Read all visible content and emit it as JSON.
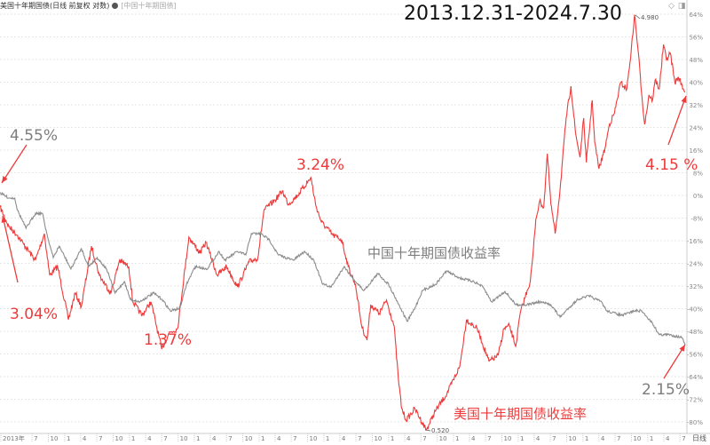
{
  "header": {
    "main_series": "美国十年期国债(日线 前复权 对数)",
    "compare_series": "[中国十年期国债]"
  },
  "top_right_icons": [
    "diamond-icon",
    "panel-icon"
  ],
  "chart_data": {
    "type": "line",
    "title": "2013.12.31-2024.7.30",
    "y_axis": {
      "position": "right",
      "unit": "%",
      "range": [
        -80,
        64
      ],
      "ticks": [
        "64%",
        "56%",
        "48%",
        "40%",
        "32%",
        "24%",
        "16%",
        "8%",
        "0%",
        "-8%",
        "-16%",
        "-24%",
        "-32%",
        "-40%",
        "-48%",
        "-56%",
        "-64%",
        "-72%",
        "-80%"
      ],
      "tick_values": [
        64,
        56,
        48,
        40,
        32,
        24,
        16,
        8,
        0,
        -8,
        -16,
        -24,
        -32,
        -40,
        -48,
        -56,
        -64,
        -72,
        -80
      ]
    },
    "x_axis": {
      "range": [
        "2014-01-01",
        "2024-07-30"
      ],
      "period_label": "日线",
      "ticks": [
        "2013年",
        "7",
        "10",
        "1",
        "4",
        "7",
        "10",
        "1",
        "4",
        "7",
        "10",
        "1",
        "4",
        "7",
        "10",
        "1",
        "4",
        "7",
        "10",
        "1",
        "4",
        "7",
        "10",
        "1",
        "4",
        "7",
        "10",
        "1",
        "4",
        "7",
        "10",
        "1",
        "4",
        "7",
        "10",
        "1",
        "4",
        "7",
        "10",
        "1",
        "4",
        "7"
      ]
    },
    "grid": "horizontal dashed",
    "series": [
      {
        "name": "美国十年期国债收益率",
        "color": "#ee3a3a",
        "points": [
          [
            "2014-01-01",
            -4.1
          ],
          [
            "2014-02-20",
            -11.0
          ],
          [
            "2014-04-10",
            -14.1
          ],
          [
            "2014-05-15",
            -17.3
          ],
          [
            "2014-07-20",
            -22.9
          ],
          [
            "2014-09-08",
            -13.5
          ],
          [
            "2014-10-08",
            -28.2
          ],
          [
            "2014-11-22",
            -25.1
          ],
          [
            "2015-01-22",
            -43.9
          ],
          [
            "2015-03-01",
            -34.5
          ],
          [
            "2015-04-05",
            -39.2
          ],
          [
            "2015-06-01",
            -17.9
          ],
          [
            "2015-07-15",
            -28.2
          ],
          [
            "2015-09-18",
            -34.5
          ],
          [
            "2015-11-06",
            -22.9
          ],
          [
            "2015-12-28",
            -25.1
          ],
          [
            "2016-01-20",
            -37.6
          ],
          [
            "2016-03-12",
            -42.4
          ],
          [
            "2016-05-01",
            -37.6
          ],
          [
            "2016-07-01",
            -54.3
          ],
          [
            "2016-08-10",
            -48.6
          ],
          [
            "2016-09-28",
            -47.1
          ],
          [
            "2016-12-01",
            -14.7
          ],
          [
            "2017-02-01",
            -20.4
          ],
          [
            "2017-03-08",
            -16.6
          ],
          [
            "2017-05-10",
            -28.2
          ],
          [
            "2017-07-01",
            -25.1
          ],
          [
            "2017-09-01",
            -32.3
          ],
          [
            "2017-11-05",
            -23.5
          ],
          [
            "2017-12-25",
            -22.0
          ],
          [
            "2018-01-28",
            -5.3
          ],
          [
            "2018-04-01",
            -1.6
          ],
          [
            "2018-05-12",
            1.6
          ],
          [
            "2018-06-15",
            -3.1
          ],
          [
            "2018-08-05",
            0
          ],
          [
            "2018-10-20",
            6.3
          ],
          [
            "2018-11-15",
            -3.1
          ],
          [
            "2018-12-18",
            -9.4
          ],
          [
            "2019-02-22",
            -14.1
          ],
          [
            "2019-04-12",
            -15.7
          ],
          [
            "2019-05-18",
            -25.1
          ],
          [
            "2019-06-28",
            -31.4
          ],
          [
            "2019-08-02",
            -46.1
          ],
          [
            "2019-09-01",
            -51.1
          ],
          [
            "2019-09-22",
            -38.6
          ],
          [
            "2019-11-10",
            -41.7
          ],
          [
            "2019-12-20",
            -37.0
          ],
          [
            "2020-02-01",
            -46.1
          ],
          [
            "2020-02-25",
            -64.9
          ],
          [
            "2020-03-15",
            -75.3
          ],
          [
            "2020-04-10",
            -79.4
          ],
          [
            "2020-05-28",
            -75.3
          ],
          [
            "2020-08-01",
            -82.9
          ],
          [
            "2020-09-20",
            -76.2
          ],
          [
            "2020-11-25",
            -70.0
          ],
          [
            "2021-02-05",
            -60.5
          ],
          [
            "2021-03-15",
            -43.9
          ],
          [
            "2021-05-15",
            -47.1
          ],
          [
            "2021-07-20",
            -58.7
          ],
          [
            "2021-09-10",
            -56.5
          ],
          [
            "2021-10-12",
            -47.1
          ],
          [
            "2021-11-12",
            -46.1
          ],
          [
            "2021-12-18",
            -53.3
          ],
          [
            "2022-01-12",
            -41.7
          ],
          [
            "2022-02-20",
            -33.6
          ],
          [
            "2022-03-10",
            -30.4
          ],
          [
            "2022-03-25",
            -21.0
          ],
          [
            "2022-04-10",
            -8.5
          ],
          [
            "2022-05-01",
            -2.2
          ],
          [
            "2022-05-25",
            -4.1
          ],
          [
            "2022-06-14",
            14.7
          ],
          [
            "2022-07-04",
            -3.1
          ],
          [
            "2022-07-28",
            -13.5
          ],
          [
            "2022-08-25",
            2.2
          ],
          [
            "2022-09-28",
            27.3
          ],
          [
            "2022-10-25",
            38.6
          ],
          [
            "2022-11-20",
            22.0
          ],
          [
            "2022-12-15",
            13.5
          ],
          [
            "2023-01-05",
            27.3
          ],
          [
            "2023-01-20",
            11.6
          ],
          [
            "2023-02-22",
            33.6
          ],
          [
            "2023-03-08",
            18.8
          ],
          [
            "2023-04-01",
            9.4
          ],
          [
            "2023-05-05",
            16.6
          ],
          [
            "2023-05-30",
            25.1
          ],
          [
            "2023-06-28",
            29.2
          ],
          [
            "2023-08-01",
            39.8
          ],
          [
            "2023-09-05",
            37.6
          ],
          [
            "2023-09-30",
            51.1
          ],
          [
            "2023-10-19",
            63.8
          ],
          [
            "2023-11-08",
            51.1
          ],
          [
            "2023-11-30",
            34.5
          ],
          [
            "2023-12-15",
            25.1
          ],
          [
            "2024-01-08",
            35.5
          ],
          [
            "2024-01-28",
            33.6
          ],
          [
            "2024-02-12",
            40.8
          ],
          [
            "2024-03-06",
            37.6
          ],
          [
            "2024-03-30",
            53.3
          ],
          [
            "2024-04-15",
            48.0
          ],
          [
            "2024-05-08",
            50.2
          ],
          [
            "2024-06-02",
            39.8
          ],
          [
            "2024-06-22",
            41.7
          ],
          [
            "2024-07-30",
            36.5
          ]
        ]
      },
      {
        "name": "中国十年期国债收益率",
        "color": "#8c8c8c",
        "points": [
          [
            "2014-01-01",
            0.9
          ],
          [
            "2014-02-20",
            -0.9
          ],
          [
            "2014-03-25",
            -0.9
          ],
          [
            "2014-04-10",
            -5.3
          ],
          [
            "2014-05-28",
            -11.6
          ],
          [
            "2014-07-20",
            -6.3
          ],
          [
            "2014-08-28",
            -6.3
          ],
          [
            "2014-09-22",
            -13.5
          ],
          [
            "2014-10-28",
            -22.0
          ],
          [
            "2014-12-01",
            -17.9
          ],
          [
            "2015-02-05",
            -26.0
          ],
          [
            "2015-04-05",
            -18.8
          ],
          [
            "2015-05-15",
            -25.1
          ],
          [
            "2015-07-03",
            -22.0
          ],
          [
            "2015-08-25",
            -26.0
          ],
          [
            "2015-10-12",
            -34.5
          ],
          [
            "2015-12-03",
            -30.4
          ],
          [
            "2016-01-06",
            -36.7
          ],
          [
            "2016-02-28",
            -37.6
          ],
          [
            "2016-05-15",
            -34.5
          ],
          [
            "2016-07-03",
            -36.7
          ],
          [
            "2016-08-18",
            -40.8
          ],
          [
            "2016-10-12",
            -39.8
          ],
          [
            "2016-11-18",
            -31.4
          ],
          [
            "2017-01-06",
            -25.1
          ],
          [
            "2017-03-12",
            -26.0
          ],
          [
            "2017-05-21",
            -19.8
          ],
          [
            "2017-06-21",
            -22.9
          ],
          [
            "2017-09-01",
            -19.8
          ],
          [
            "2017-10-18",
            -21.0
          ],
          [
            "2017-11-18",
            -13.5
          ],
          [
            "2018-01-10",
            -13.5
          ],
          [
            "2018-02-28",
            -15.7
          ],
          [
            "2018-04-18",
            -21.0
          ],
          [
            "2018-07-12",
            -22.9
          ],
          [
            "2018-09-15",
            -19.8
          ],
          [
            "2018-11-06",
            -22.9
          ],
          [
            "2018-12-25",
            -31.4
          ],
          [
            "2019-02-12",
            -32.3
          ],
          [
            "2019-04-25",
            -25.1
          ],
          [
            "2019-06-12",
            -29.2
          ],
          [
            "2019-06-28",
            -30.4
          ],
          [
            "2019-08-15",
            -33.6
          ],
          [
            "2019-11-01",
            -27.6
          ],
          [
            "2020-01-01",
            -31.4
          ],
          [
            "2020-02-20",
            -37.6
          ],
          [
            "2020-04-15",
            -44.5
          ],
          [
            "2020-05-28",
            -39.8
          ],
          [
            "2020-07-10",
            -33.6
          ],
          [
            "2020-09-22",
            -31.4
          ],
          [
            "2020-11-22",
            -26.7
          ],
          [
            "2021-02-06",
            -29.2
          ],
          [
            "2021-04-25",
            -30.4
          ],
          [
            "2021-06-15",
            -32.3
          ],
          [
            "2021-08-04",
            -37.6
          ],
          [
            "2021-10-18",
            -33.9
          ],
          [
            "2021-12-18",
            -38.6
          ],
          [
            "2022-02-20",
            -38.6
          ],
          [
            "2022-05-01",
            -37.6
          ],
          [
            "2022-07-04",
            -38.6
          ],
          [
            "2022-08-25",
            -43.0
          ],
          [
            "2022-10-12",
            -39.8
          ],
          [
            "2022-12-03",
            -36.7
          ],
          [
            "2023-02-03",
            -35.5
          ],
          [
            "2023-04-15",
            -37.6
          ],
          [
            "2023-05-15",
            -40.8
          ],
          [
            "2023-08-10",
            -42.4
          ],
          [
            "2023-10-15",
            -40.8
          ],
          [
            "2023-11-28",
            -40.8
          ],
          [
            "2024-01-25",
            -44.9
          ],
          [
            "2024-03-06",
            -49.2
          ],
          [
            "2024-05-01",
            -49.2
          ],
          [
            "2024-07-12",
            -50.2
          ],
          [
            "2024-07-30",
            -52.7
          ]
        ]
      }
    ],
    "annotations": {
      "cn_start": "4.55%",
      "us_start": "3.04%",
      "us_low_2016": "1.37%",
      "us_high_2018": "3.24%",
      "cn_label": "中国十年期国债收益率",
      "us_label": "美国十年期国债收益率",
      "cn_end": "2.15%",
      "us_end": "4.15 %",
      "max_marker": "4.980",
      "min_marker": "0.520"
    }
  }
}
